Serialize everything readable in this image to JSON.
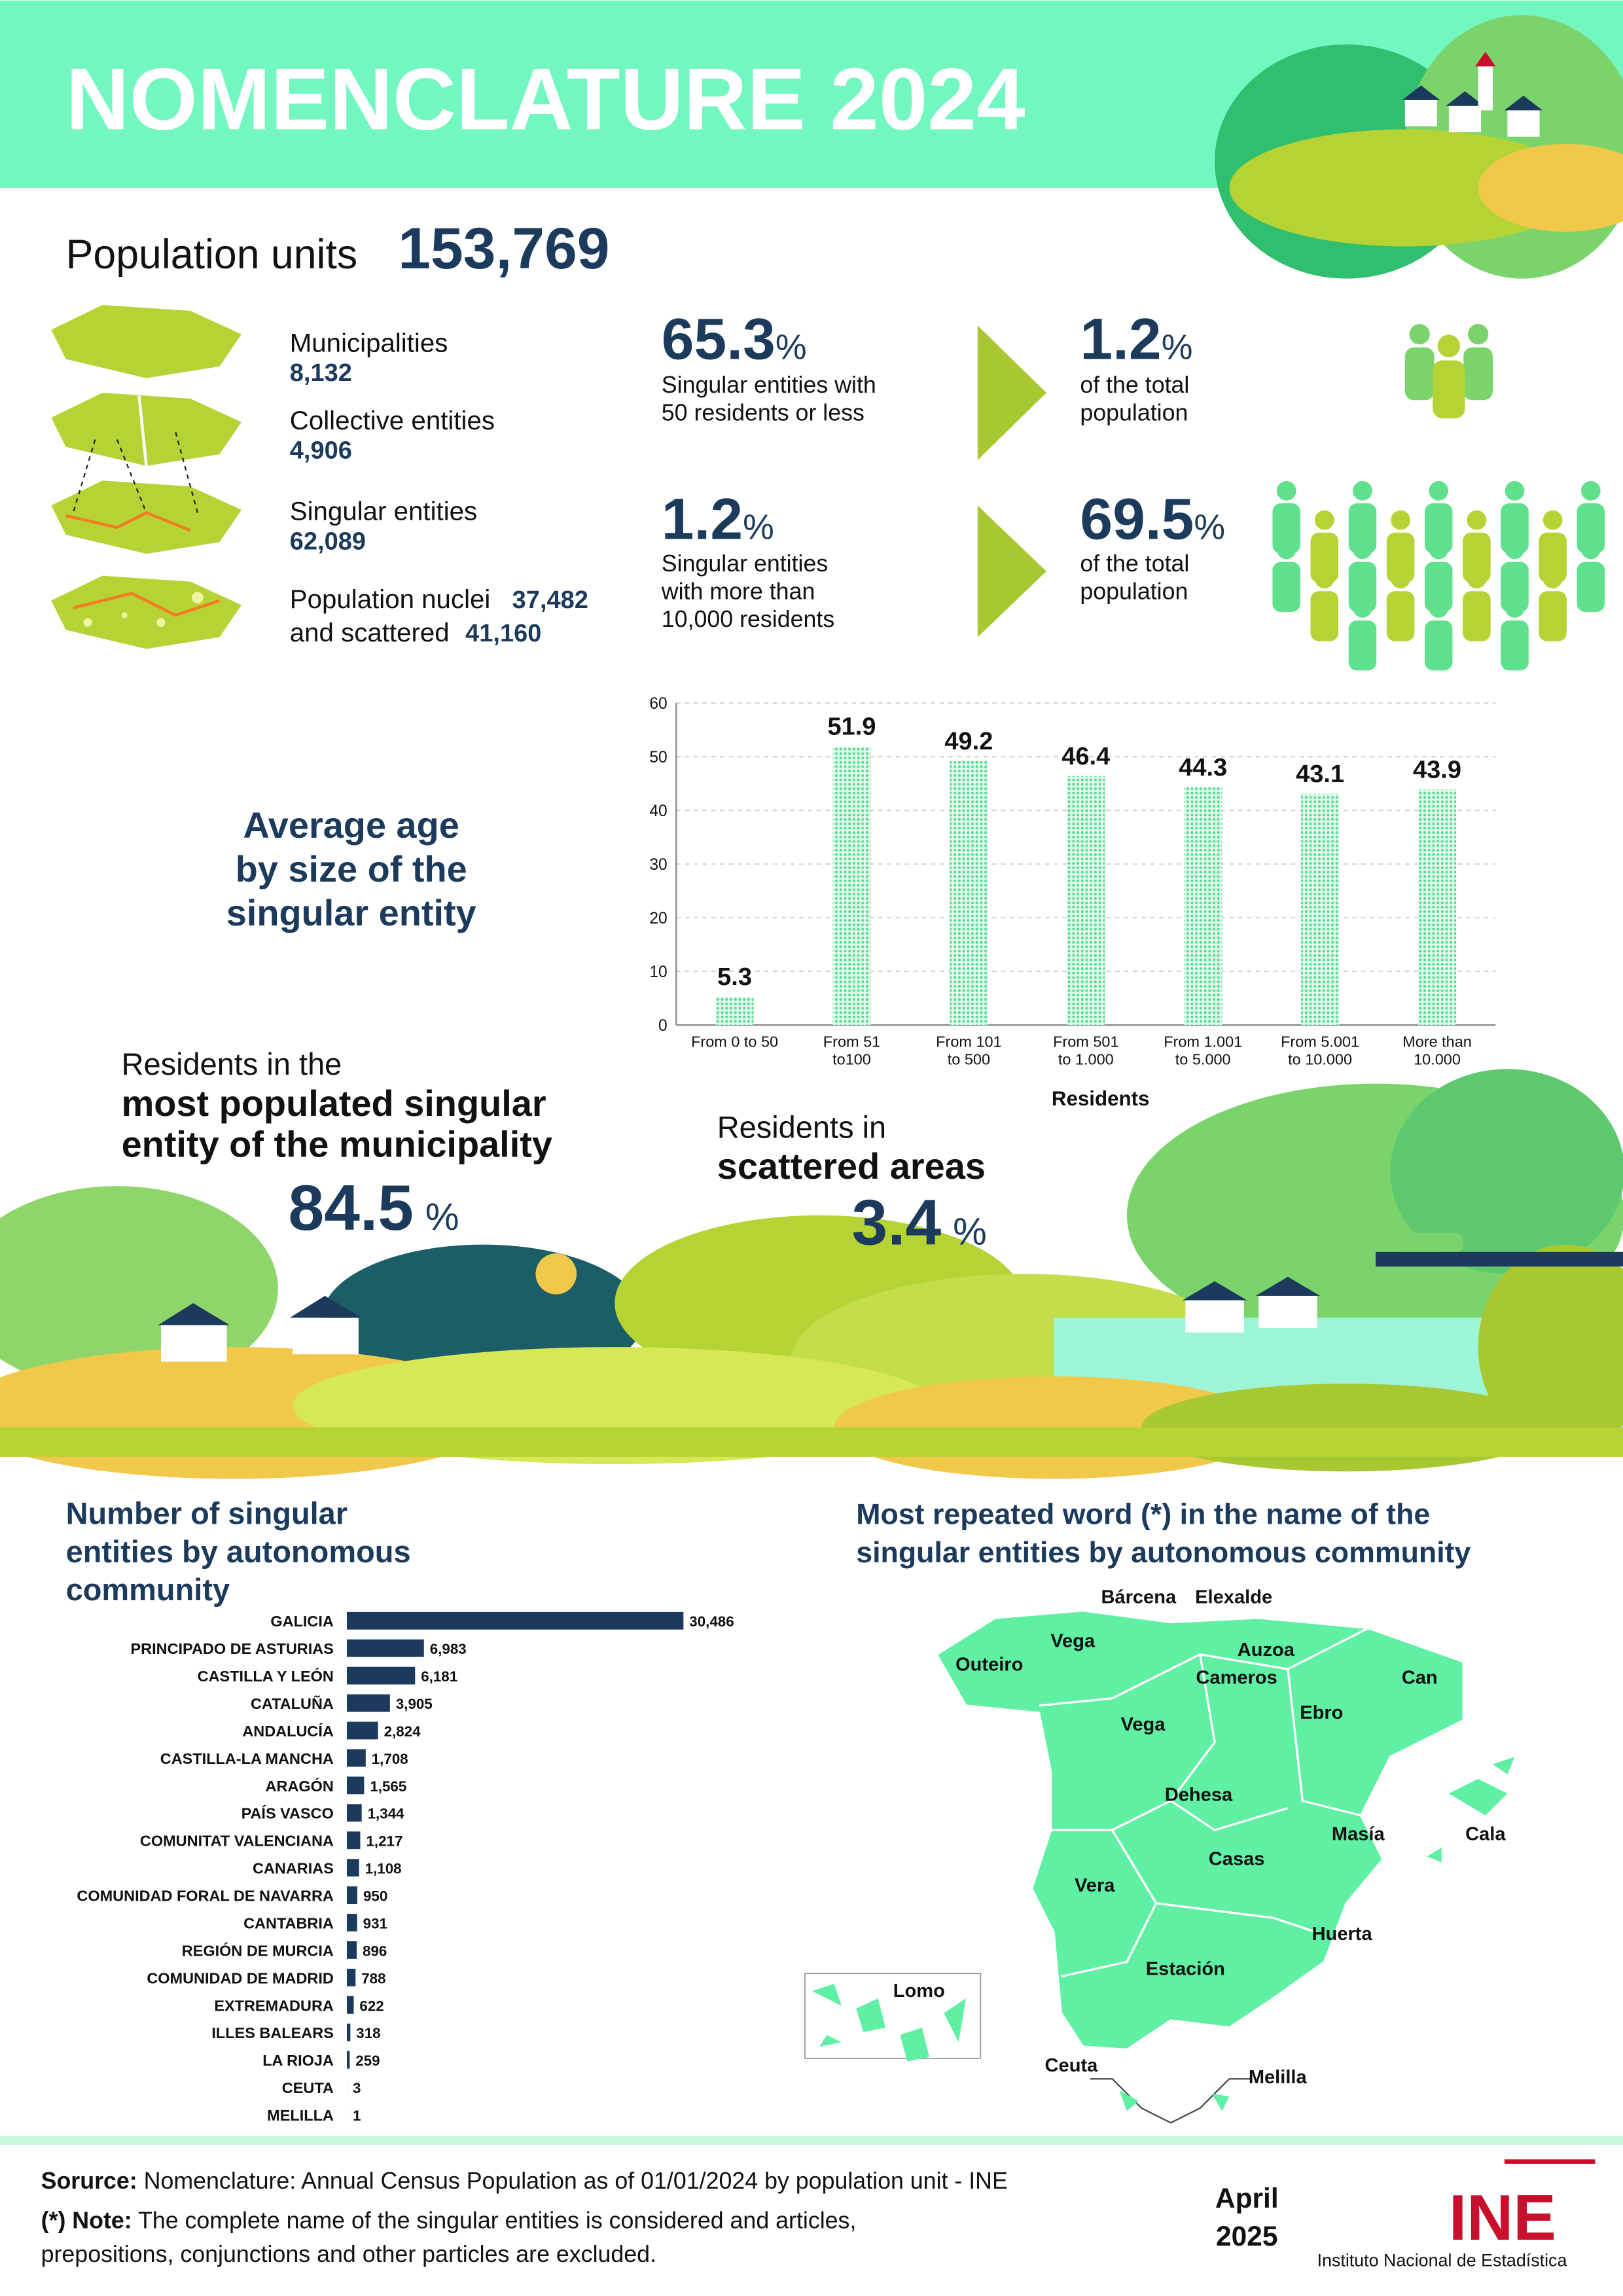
{
  "header": {
    "title": "NOMENCLATURE 2024"
  },
  "population_units": {
    "label": "Population units",
    "value": "153,769"
  },
  "units": [
    {
      "label": "Municipalities",
      "value": "8,132"
    },
    {
      "label": "Collective entities",
      "value": "4,906"
    },
    {
      "label": "Singular entities",
      "value": "62,089"
    }
  ],
  "nuclei": {
    "label": "Population nuclei",
    "value": "37,482",
    "scattered_label": "and scattered",
    "scattered_value": "41,160"
  },
  "highlights": [
    {
      "value": "65.3",
      "unit": "%",
      "text": "Singular entities with\n50 residents or less",
      "result_value": "1.2",
      "result_unit": "%",
      "result_text": "of the total\npopulation"
    },
    {
      "value": "1.2",
      "unit": "%",
      "text": "Singular entities\nwith more than\n10,000 residents",
      "result_value": "69.5",
      "result_unit": "%",
      "result_text": "of the total\npopulation"
    }
  ],
  "most_populated": {
    "intro": "Residents in the",
    "title": "most populated singular\nentity of the municipality",
    "value": "84.5",
    "unit": "%"
  },
  "scattered": {
    "intro": "Residents in",
    "title": "scattered areas",
    "value": "3.4",
    "unit": "%"
  },
  "chart_data": [
    {
      "type": "bar",
      "title": "Average age\nby size of the\nsingular entity",
      "x_label": "Residents",
      "categories": [
        "From 0 to 50",
        "From 51\nto100",
        "From 101\nto 500",
        "From 501\nto 1.000",
        "From 1.001\nto 5.000",
        "From 5.001\nto 10.000",
        "More than\n10.000"
      ],
      "values": [
        5.3,
        51.9,
        49.2,
        46.4,
        44.3,
        43.1,
        43.9
      ],
      "color": "#5fdc96",
      "ylim": [
        0,
        60
      ],
      "yticks": [
        0,
        10,
        20,
        30,
        40,
        50,
        60
      ],
      "grid": true
    },
    {
      "type": "barh",
      "title": "Number of singular\nentities by autonomous\ncommunity",
      "categories": [
        "GALICIA",
        "PRINCIPADO DE ASTURIAS",
        "CASTILLA Y LEÓN",
        "CATALUÑA",
        "ANDALUCÍA",
        "CASTILLA-LA MANCHA",
        "ARAGÓN",
        "PAÍS VASCO",
        "COMUNITAT VALENCIANA",
        "CANARIAS",
        "COMUNIDAD FORAL DE NAVARRA",
        "CANTABRIA",
        "REGIÓN DE MURCIA",
        "COMUNIDAD DE MADRID",
        "EXTREMADURA",
        "ILLES BALEARS",
        "LA RIOJA",
        "CEUTA",
        "MELILLA"
      ],
      "values": [
        30486,
        6983,
        6181,
        3905,
        2824,
        1708,
        1565,
        1344,
        1217,
        1108,
        950,
        931,
        896,
        788,
        622,
        318,
        259,
        3,
        1
      ],
      "value_labels": [
        "30,486",
        "6,983",
        "6,181",
        "3,905",
        "2,824",
        "1,708",
        "1,565",
        "1,344",
        "1,217",
        "1,108",
        "950",
        "931",
        "896",
        "788",
        "622",
        "318",
        "259",
        "3",
        "1"
      ],
      "color": "#1b3a5c"
    }
  ],
  "map": {
    "title": "Most repeated word (*) in the name of the\nsingular entities by autonomous community",
    "labels": [
      "Bárcena",
      "Elexalde",
      "Vega",
      "Auzoa",
      "Outeiro",
      "Cameros",
      "Can",
      "Ebro",
      "Vega",
      "Dehesa",
      "Masía",
      "Cala",
      "Casas",
      "Vera",
      "Huerta",
      "Estación",
      "Lomo",
      "Ceuta",
      "Melilla"
    ]
  },
  "footer": {
    "source_label": "Sorurce:",
    "source_text": " Nomenclature: Annual Census Population as of 01/01/2024 by population unit - INE",
    "note_label": "(*) Note:",
    "note_text": " The complete name of the singular entities is considered and articles,",
    "note_text2": "prepositions, conjunctions and other particles are excluded.",
    "date": "April\n2025",
    "logo": "INE",
    "institute": "Instituto Nacional de Estadística"
  }
}
